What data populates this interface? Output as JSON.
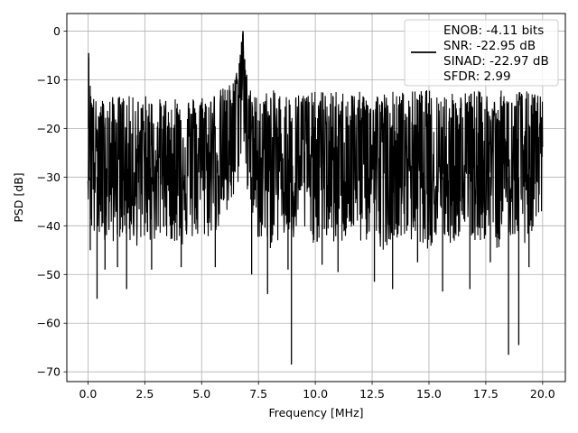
{
  "chart_data": {
    "type": "line",
    "xlabel": "Frequency [MHz]",
    "ylabel": "PSD [dB]",
    "xlim": [
      -0.93,
      21.0
    ],
    "ylim": [
      -72.0,
      3.6
    ],
    "xticks": [
      0.0,
      2.5,
      5.0,
      7.5,
      10.0,
      12.5,
      15.0,
      17.5,
      20.0
    ],
    "xtick_labels": [
      "0.0",
      "2.5",
      "5.0",
      "7.5",
      "10.0",
      "12.5",
      "15.0",
      "17.5",
      "20.0"
    ],
    "yticks": [
      0,
      -10,
      -20,
      -30,
      -40,
      -50,
      -60,
      -70
    ],
    "ytick_labels": [
      "0",
      "−10",
      "−20",
      "−30",
      "−40",
      "−50",
      "−60",
      "−70"
    ],
    "grid": true,
    "legend_position": "top-right",
    "legend_lines": [
      "ENOB: -4.11 bits",
      "SNR: -22.95 dB",
      "SINAD: -22.97 dB",
      "SFDR: 2.99"
    ],
    "series_color": "#000000",
    "series": [
      {
        "x": [
          0.0,
          0.03,
          0.08,
          0.3,
          0.5,
          1.0,
          1.5,
          2.0,
          2.5,
          3.0,
          3.5,
          4.0,
          4.5,
          5.0,
          5.5,
          6.0,
          6.3,
          6.5,
          6.65,
          6.75,
          6.82,
          6.9,
          7.0,
          7.2,
          7.5,
          8.0,
          8.5,
          9.0,
          9.5,
          10.0,
          10.5,
          11.0,
          11.5,
          12.0,
          12.5,
          13.0,
          13.5,
          14.0,
          14.5,
          15.0,
          15.5,
          16.0,
          16.5,
          17.0,
          17.5,
          18.0,
          18.5,
          19.0,
          19.5,
          20.0
        ],
        "y": [
          -27.0,
          -4.5,
          -15.0,
          -25.0,
          -24.0,
          -26.0,
          -25.5,
          -26.0,
          -25.0,
          -25.5,
          -25.0,
          -24.5,
          -25.0,
          -24.0,
          -24.5,
          -22.0,
          -20.0,
          -16.0,
          -10.0,
          -4.0,
          0.0,
          -8.0,
          -14.0,
          -22.0,
          -25.0,
          -25.5,
          -25.0,
          -26.0,
          -25.0,
          -25.0,
          -26.0,
          -25.0,
          -25.5,
          -25.0,
          -26.0,
          -25.0,
          -25.5,
          -25.0,
          -26.0,
          -25.0,
          -25.5,
          -25.0,
          -26.0,
          -25.0,
          -25.5,
          -25.0,
          -26.0,
          -25.0,
          -25.5,
          -25.0
        ],
        "upper_envelope": [
          -15.0,
          -4.5,
          -10.0,
          -14.0,
          -14.0,
          -13.5,
          -13.0,
          -13.5,
          -13.0,
          -14.0,
          -13.5,
          -13.0,
          -13.5,
          -13.0,
          -12.5,
          -11.5,
          -10.5,
          -9.0,
          -6.0,
          -2.0,
          0.0,
          -5.0,
          -9.0,
          -13.0,
          -13.0,
          -12.0,
          -12.5,
          -13.0,
          -12.0,
          -12.5,
          -12.0,
          -12.5,
          -12.0,
          -12.5,
          -12.0,
          -12.5,
          -12.0,
          -12.5,
          -12.0,
          -12.0,
          -12.5,
          -12.0,
          -12.5,
          -12.0,
          -12.5,
          -12.0,
          -12.5,
          -12.0,
          -12.5,
          -13.0
        ],
        "lower_envelope": [
          -38.0,
          -30.0,
          -42.0,
          -44.0,
          -42.0,
          -44.0,
          -42.0,
          -45.0,
          -43.0,
          -44.0,
          -42.0,
          -45.0,
          -43.0,
          -44.0,
          -42.0,
          -40.0,
          -38.0,
          -35.0,
          -30.0,
          -25.0,
          -22.0,
          -28.0,
          -34.0,
          -40.0,
          -43.0,
          -45.0,
          -43.0,
          -44.0,
          -42.0,
          -44.0,
          -43.0,
          -45.0,
          -42.0,
          -44.0,
          -43.0,
          -45.0,
          -42.0,
          -44.0,
          -43.0,
          -45.0,
          -43.0,
          -44.0,
          -42.0,
          -44.0,
          -43.0,
          -45.0,
          -42.0,
          -44.0,
          -43.0,
          -38.0
        ]
      }
    ],
    "deep_dips": [
      {
        "x": 0.1,
        "y": -45.0
      },
      {
        "x": 0.4,
        "y": -55.0
      },
      {
        "x": 0.75,
        "y": -49.0
      },
      {
        "x": 1.3,
        "y": -48.5
      },
      {
        "x": 1.7,
        "y": -53.0
      },
      {
        "x": 2.8,
        "y": -49.0
      },
      {
        "x": 4.1,
        "y": -48.5
      },
      {
        "x": 5.6,
        "y": -48.5
      },
      {
        "x": 7.2,
        "y": -50.0
      },
      {
        "x": 7.9,
        "y": -54.0
      },
      {
        "x": 8.8,
        "y": -49.0
      },
      {
        "x": 8.95,
        "y": -68.5
      },
      {
        "x": 10.3,
        "y": -48.0
      },
      {
        "x": 11.0,
        "y": -49.5
      },
      {
        "x": 12.6,
        "y": -51.5
      },
      {
        "x": 13.4,
        "y": -53.0
      },
      {
        "x": 14.5,
        "y": -47.5
      },
      {
        "x": 15.6,
        "y": -53.5
      },
      {
        "x": 16.8,
        "y": -53.0
      },
      {
        "x": 17.7,
        "y": -47.5
      },
      {
        "x": 18.5,
        "y": -66.5
      },
      {
        "x": 18.95,
        "y": -64.5
      },
      {
        "x": 19.4,
        "y": -48.5
      }
    ]
  }
}
